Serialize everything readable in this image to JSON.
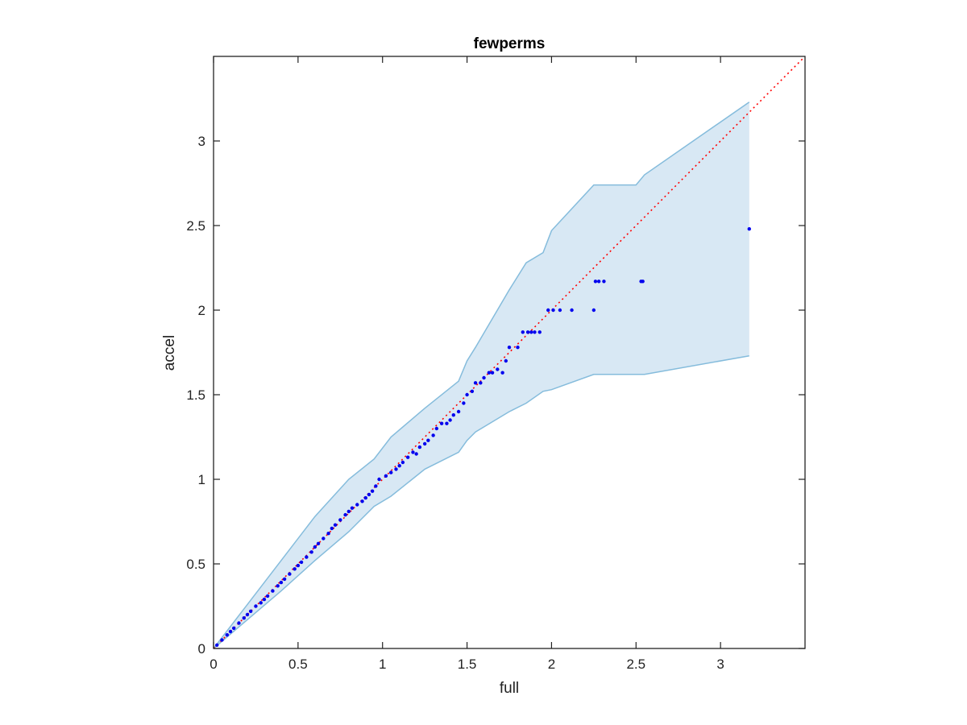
{
  "chart_data": {
    "type": "scatter",
    "title": "fewperms",
    "xlabel": "full",
    "ylabel": "accel",
    "xlim": [
      0,
      3.5
    ],
    "ylim": [
      0,
      3.5
    ],
    "grid": false,
    "x_ticks": [
      "0",
      "0.5",
      "1",
      "1.5",
      "2",
      "2.5",
      "3"
    ],
    "y_ticks": [
      "0",
      "0.5",
      "1",
      "1.5",
      "2",
      "2.5",
      "3"
    ],
    "colors": {
      "points": "#0000ee",
      "reference_line": "#ff0000",
      "band_fill": "#d8e8f4",
      "band_edge": "#85bcdc",
      "axes": "#222222"
    },
    "reference_line": {
      "style": "dotted",
      "x": [
        0,
        3.5
      ],
      "y": [
        0,
        3.5
      ]
    },
    "confidence_band": {
      "x": [
        0,
        0.2,
        0.4,
        0.6,
        0.8,
        0.95,
        1.05,
        1.25,
        1.45,
        1.5,
        1.55,
        1.65,
        1.75,
        1.85,
        1.95,
        2.0,
        2.25,
        2.5,
        2.55,
        3.17
      ],
      "upper": [
        0,
        0.26,
        0.52,
        0.78,
        1.0,
        1.12,
        1.25,
        1.42,
        1.58,
        1.7,
        1.78,
        1.95,
        2.12,
        2.28,
        2.34,
        2.47,
        2.74,
        2.74,
        2.8,
        3.23
      ],
      "lower": [
        0,
        0.17,
        0.34,
        0.52,
        0.69,
        0.84,
        0.9,
        1.06,
        1.16,
        1.23,
        1.28,
        1.34,
        1.4,
        1.45,
        1.52,
        1.53,
        1.62,
        1.62,
        1.62,
        1.73
      ]
    },
    "series": [
      {
        "x": [
          0.02,
          0.05,
          0.08,
          0.1,
          0.12,
          0.15,
          0.18,
          0.2,
          0.22,
          0.25,
          0.28,
          0.3,
          0.32,
          0.35,
          0.38,
          0.4,
          0.42,
          0.45,
          0.48,
          0.5,
          0.52,
          0.55,
          0.58,
          0.6,
          0.62,
          0.65,
          0.68,
          0.7,
          0.72,
          0.75,
          0.78,
          0.8,
          0.82,
          0.85,
          0.88,
          0.9,
          0.92,
          0.94,
          0.96,
          0.98,
          1.02,
          1.05,
          1.08,
          1.1,
          1.12,
          1.15,
          1.18,
          1.2,
          1.22,
          1.25,
          1.27,
          1.3,
          1.32,
          1.35,
          1.38,
          1.4,
          1.42,
          1.45,
          1.48,
          1.5,
          1.53,
          1.55,
          1.58,
          1.6,
          1.63,
          1.65,
          1.68,
          1.71,
          1.73,
          1.75,
          1.8,
          1.83,
          1.86,
          1.88,
          1.9,
          1.93,
          1.98,
          2.01,
          2.05,
          2.12,
          2.25,
          2.26,
          2.28,
          2.31,
          2.53,
          2.54,
          3.17
        ],
        "y": [
          0.02,
          0.05,
          0.08,
          0.1,
          0.12,
          0.15,
          0.18,
          0.2,
          0.22,
          0.25,
          0.27,
          0.29,
          0.31,
          0.34,
          0.37,
          0.39,
          0.41,
          0.44,
          0.47,
          0.49,
          0.51,
          0.54,
          0.57,
          0.6,
          0.62,
          0.65,
          0.68,
          0.71,
          0.73,
          0.76,
          0.79,
          0.81,
          0.83,
          0.85,
          0.87,
          0.89,
          0.91,
          0.93,
          0.96,
          1.0,
          1.02,
          1.04,
          1.06,
          1.08,
          1.1,
          1.13,
          1.16,
          1.15,
          1.19,
          1.21,
          1.23,
          1.26,
          1.3,
          1.33,
          1.33,
          1.35,
          1.38,
          1.4,
          1.45,
          1.5,
          1.52,
          1.57,
          1.57,
          1.6,
          1.63,
          1.63,
          1.65,
          1.63,
          1.7,
          1.78,
          1.78,
          1.87,
          1.87,
          1.87,
          1.87,
          1.87,
          2.0,
          2.0,
          2.0,
          2.0,
          2.0,
          2.17,
          2.17,
          2.17,
          2.17,
          2.17,
          2.48
        ]
      }
    ]
  }
}
